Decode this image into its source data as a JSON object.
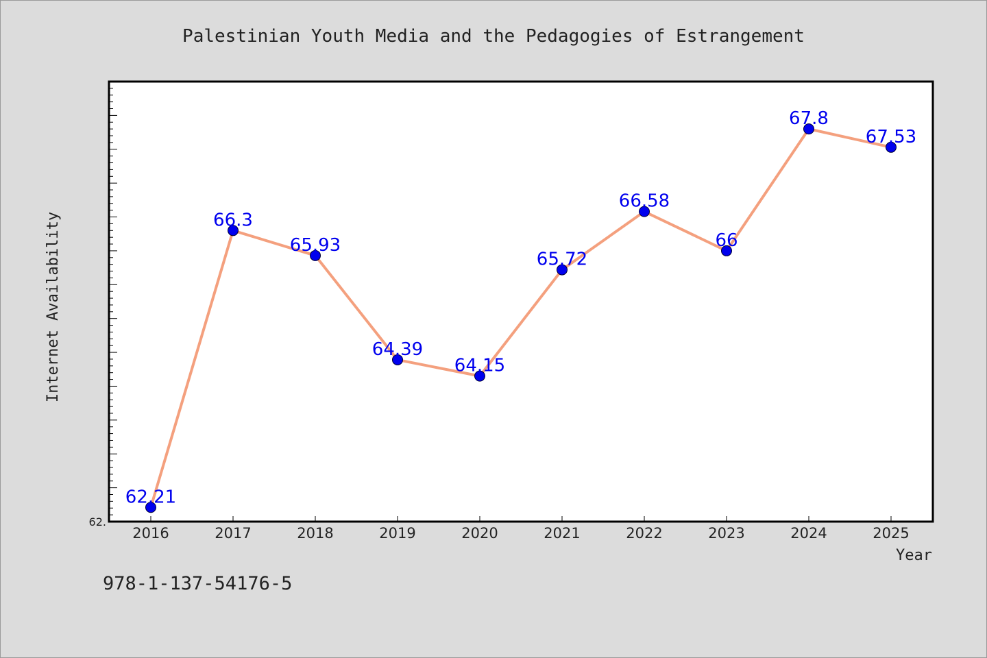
{
  "colors": {
    "background": "#dcdcdc",
    "plot_background": "#ffffff",
    "line": "#f4a07e",
    "marker": "#0000ee",
    "data_label": "#0000ee",
    "text": "#222222"
  },
  "isbn": "978-1-137-54176-5",
  "chart_data": {
    "type": "line",
    "title": "Palestinian Youth Media and the Pedagogies of Estrangement",
    "xlabel": "Year",
    "ylabel": "Internet Availability",
    "categories": [
      "2016",
      "2017",
      "2018",
      "2019",
      "2020",
      "2021",
      "2022",
      "2023",
      "2024",
      "2025"
    ],
    "series": [
      {
        "values": [
          62.21,
          66.3,
          65.93,
          64.39,
          64.15,
          65.72,
          66.58,
          66,
          67.8,
          67.53
        ],
        "labels": [
          "62.21",
          "66.3",
          "65.93",
          "64.39",
          "64.15",
          "65.72",
          "66.58",
          "66",
          "67.8",
          "67.53"
        ]
      }
    ],
    "ylim": [
      62.0,
      68.5
    ],
    "y_tick_labels": [
      "62."
    ],
    "grid": false,
    "legend": "none"
  }
}
